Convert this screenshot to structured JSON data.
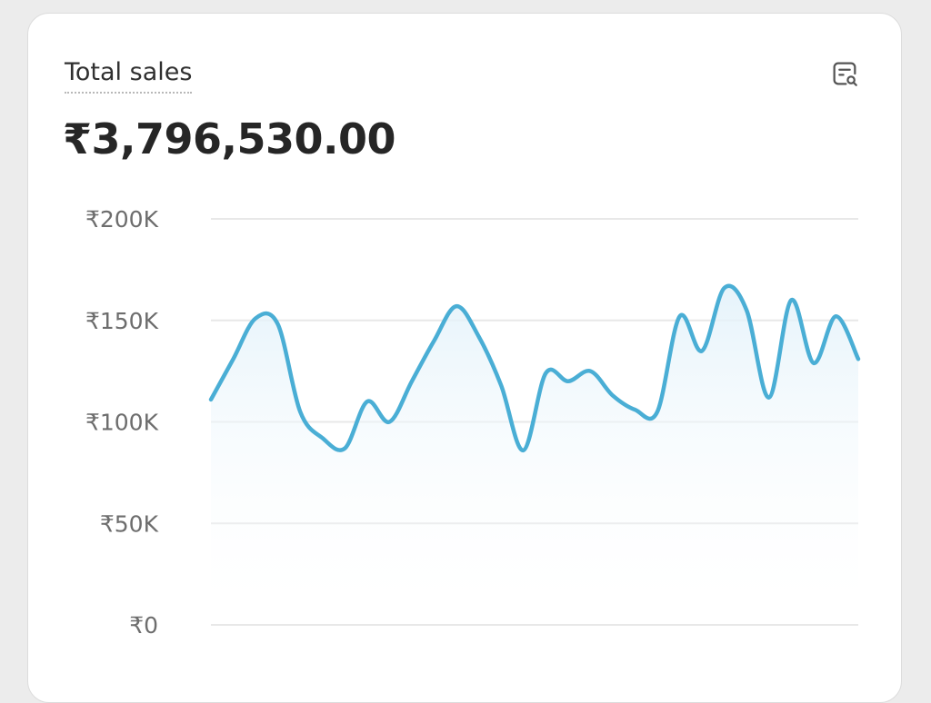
{
  "card": {
    "title": "Total sales",
    "total": "₹3,796,530.00",
    "explore_icon": "chart-search-icon"
  },
  "colors": {
    "line": "#4aaed5",
    "area_top": "#e3f2fa",
    "grid": "#e8e8e8",
    "axis_text": "#6d6d6d"
  },
  "chart_data": {
    "type": "area",
    "title": "",
    "xlabel": "",
    "ylabel": "",
    "ylim": [
      0,
      200000
    ],
    "y_ticks": [
      {
        "value": 200000,
        "label": "₹200K"
      },
      {
        "value": 150000,
        "label": "₹150K"
      },
      {
        "value": 100000,
        "label": "₹100K"
      },
      {
        "value": 50000,
        "label": "₹50K"
      },
      {
        "value": 0,
        "label": "₹0"
      }
    ],
    "grid": true,
    "legend": false,
    "series": [
      {
        "values": [
          111000,
          131000,
          151000,
          148000,
          105000,
          92000,
          87000,
          110000,
          100000,
          120000,
          140000,
          157000,
          142000,
          118000,
          86000,
          124000,
          120000,
          125000,
          113000,
          106000,
          105000,
          152000,
          135000,
          166000,
          155000,
          112000,
          160000,
          129000,
          152000,
          131000
        ]
      }
    ]
  }
}
